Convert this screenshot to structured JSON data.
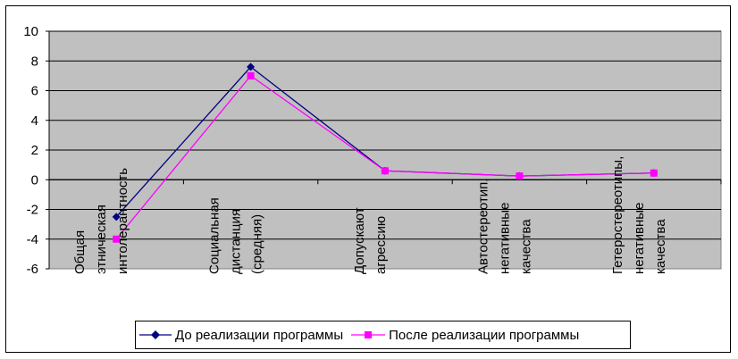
{
  "chart_data": {
    "type": "line",
    "categories": [
      [
        "Общая",
        "этническая",
        "интолерантность"
      ],
      [
        "Социальная",
        "дистанция",
        "(средняя)"
      ],
      [
        "Допускают",
        "агрессию"
      ],
      [
        "Автостереотип,",
        "негативные",
        "качества"
      ],
      [
        "Гетеростереотипы,",
        "негативные",
        "качества"
      ]
    ],
    "series": [
      {
        "name": "До реализации программы",
        "color": "#000080",
        "marker": "diamond",
        "values": [
          -2.5,
          7.6,
          0.6,
          0.25,
          0.45
        ]
      },
      {
        "name": "После реализации программы",
        "color": "#ff00ff",
        "marker": "square",
        "values": [
          -4.0,
          7.0,
          0.6,
          0.25,
          0.45
        ]
      }
    ],
    "ylim": [
      -6,
      10
    ],
    "yticks": [
      "10",
      "8",
      "6",
      "4",
      "2",
      "0",
      "-2",
      "-4",
      "-6"
    ],
    "ytick_values": [
      10,
      8,
      6,
      4,
      2,
      0,
      -2,
      -4,
      -6
    ],
    "plot_background": "#c0c0c0",
    "grid": true,
    "legend_position": "bottom"
  }
}
